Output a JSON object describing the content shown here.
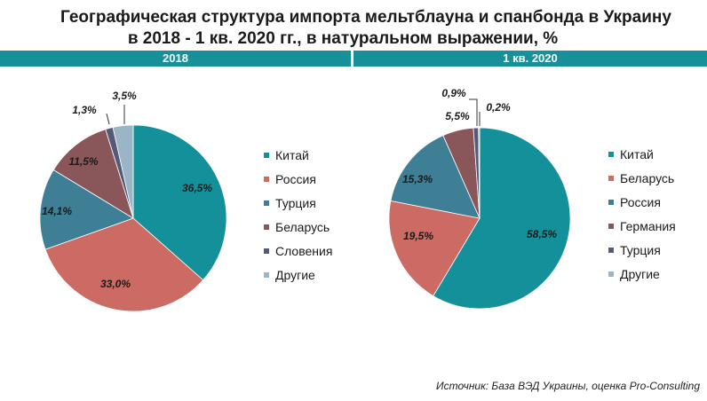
{
  "title_line1": "Географическая структура импорта мельтблауна и спанбонда в Украину",
  "title_line2": "в 2018 - 1 кв. 2020 гг., в натуральном выражении, %",
  "source": "Источник: База ВЭД Украины, оценка Pro-Consulting",
  "chart_data": [
    {
      "type": "pie",
      "title": "2018",
      "unit": "%",
      "slices": [
        {
          "label": "Китай",
          "value": 36.5,
          "display": "36,5%",
          "color": "#14909a"
        },
        {
          "label": "Россия",
          "value": 33.0,
          "display": "33,0%",
          "color": "#cc6a64"
        },
        {
          "label": "Турция",
          "value": 14.1,
          "display": "14,1%",
          "color": "#3e7f96"
        },
        {
          "label": "Беларусь",
          "value": 11.5,
          "display": "11,5%",
          "color": "#89565a"
        },
        {
          "label": "Словения",
          "value": 1.3,
          "display": "1,3%",
          "color": "#555a78"
        },
        {
          "label": "Другие",
          "value": 3.5,
          "display": "3,5%",
          "color": "#9ab6c6"
        }
      ]
    },
    {
      "type": "pie",
      "title": "1 кв. 2020",
      "unit": "%",
      "slices": [
        {
          "label": "Китай",
          "value": 58.5,
          "display": "58,5%",
          "color": "#14909a"
        },
        {
          "label": "Беларусь",
          "value": 19.5,
          "display": "19,5%",
          "color": "#cc6a64"
        },
        {
          "label": "Россия",
          "value": 15.3,
          "display": "15,3%",
          "color": "#3e7f96"
        },
        {
          "label": "Германия",
          "value": 5.5,
          "display": "5,5%",
          "color": "#89565a"
        },
        {
          "label": "Турция",
          "value": 0.9,
          "display": "0,9%",
          "color": "#555a78"
        },
        {
          "label": "Другие",
          "value": 0.2,
          "display": "0,2%",
          "color": "#9ab6c6"
        }
      ]
    }
  ]
}
